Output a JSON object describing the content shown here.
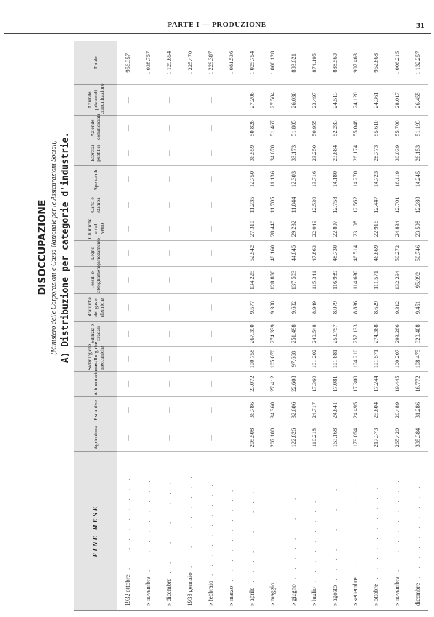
{
  "page_header": {
    "part": "PARTE I — PRODUZIONE",
    "page_number": "31"
  },
  "title": "DISOCCUPAZIONE",
  "subtitle": "(Ministero delle Corporazioni e Cassa Nazionale per le Assicurazioni Sociali)",
  "section": "A) Distribuzione per categorie d'industrie.",
  "table": {
    "month_header": "FINE MESE",
    "headers": [
      "Agricoltura",
      "Estrattive",
      "Alimentazione",
      "Siderurgiche metallurgiche meccaniche",
      "Edilizia e stradali",
      "Idrauliche del gas e elettriche",
      "Tessili e abbigliamento",
      "Legno (arredamento)",
      "Chimiche e del vetro",
      "Carta e stampa",
      "Spettacolo",
      "Esercizi pubblici",
      "Aziende commerciali",
      "Aziende private di comunicazione",
      "Totale"
    ],
    "rows": [
      {
        "month": "1932 ottobre",
        "values": [
          "—",
          "—",
          "—",
          "—",
          "—",
          "—",
          "—",
          "—",
          "—",
          "—",
          "—",
          "—",
          "—",
          "—",
          "956.357"
        ]
      },
      {
        "month": "» novembre",
        "values": [
          "—",
          "—",
          "—",
          "—",
          "—",
          "—",
          "—",
          "—",
          "—",
          "—",
          "—",
          "—",
          "—",
          "—",
          "1.038.757"
        ]
      },
      {
        "month": "» dicembre",
        "values": [
          "—",
          "—",
          "—",
          "—",
          "—",
          "—",
          "—",
          "—",
          "—",
          "—",
          "—",
          "—",
          "—",
          "—",
          "1.129.654"
        ]
      },
      {
        "month": "1933 gennaio",
        "values": [
          "—",
          "—",
          "—",
          "—",
          "—",
          "—",
          "—",
          "—",
          "—",
          "—",
          "—",
          "—",
          "—",
          "—",
          "1.225.470"
        ]
      },
      {
        "month": "» febbraio",
        "values": [
          "—",
          "—",
          "—",
          "—",
          "—",
          "—",
          "—",
          "—",
          "—",
          "—",
          "—",
          "—",
          "—",
          "—",
          "1.229.387"
        ]
      },
      {
        "month": "» marzo",
        "values": [
          "—",
          "—",
          "—",
          "—",
          "—",
          "—",
          "—",
          "—",
          "—",
          "—",
          "—",
          "—",
          "—",
          "—",
          "1.081.536"
        ]
      },
      {
        "month": "» aprile",
        "values": [
          "205.508",
          "36.786",
          "23.072",
          "100.758",
          "267.390",
          "9.577",
          "134.225",
          "52.542",
          "27.310",
          "11.235",
          "12.750",
          "36.559",
          "50.826",
          "27.206",
          "1.025.754"
        ]
      },
      {
        "month": "» maggio",
        "values": [
          "207.100",
          "34.360",
          "27.412",
          "105.070",
          "274.339",
          "9.308",
          "128.880",
          "48.160",
          "28.440",
          "11.705",
          "11.136",
          "34.670",
          "51.467",
          "27.504",
          "1.000.128"
        ]
      },
      {
        "month": "» giugno",
        "values": [
          "122.826",
          "32.606",
          "22.608",
          "97.668",
          "251.498",
          "9.682",
          "137.503",
          "44.845",
          "29.232",
          "11.844",
          "12.303",
          "33.173",
          "51.805",
          "26.030",
          "883.621"
        ]
      },
      {
        "month": "» luglio",
        "values": [
          "110.218",
          "24.717",
          "17.360",
          "101.202",
          "240.548",
          "8.949",
          "115.341",
          "47.863",
          "22.049",
          "12.530",
          "13.716",
          "23.250",
          "50.955",
          "23.497",
          "874.195"
        ]
      },
      {
        "month": "» agosto",
        "values": [
          "163.168",
          "24.641",
          "17.081",
          "101.881",
          "253.757",
          "8.079",
          "116.989",
          "48.730",
          "22.897",
          "12.758",
          "14.180",
          "23.684",
          "52.283",
          "24.513",
          "888.560"
        ]
      },
      {
        "month": "» settembre",
        "values": [
          "179.054",
          "24.495",
          "17.300",
          "104.210",
          "257.133",
          "8.836",
          "114.630",
          "46.514",
          "23.108",
          "12.562",
          "14.270",
          "26.174",
          "55.048",
          "24.120",
          "907.463"
        ]
      },
      {
        "month": "» ottobre",
        "values": [
          "217.373",
          "25.604",
          "17.244",
          "101.571",
          "274.368",
          "8.629",
          "111.571",
          "46.669",
          "22.916",
          "12.447",
          "14.723",
          "28.773",
          "55.610",
          "24.361",
          "962.868"
        ]
      },
      {
        "month": "» novembre",
        "values": [
          "265.420",
          "20.489",
          "19.445",
          "100.207",
          "293.266",
          "9.312",
          "132.294",
          "50.272",
          "24.834",
          "12.701",
          "16.119",
          "30.039",
          "55.700",
          "28.017",
          "1.006.215"
        ]
      },
      {
        "month": "dicembre",
        "values": [
          "335.384",
          "31.286",
          "16.772",
          "108.475",
          "320.408",
          "9.451",
          "95.992",
          "50.746",
          "23.508",
          "12.280",
          "14.245",
          "26.153",
          "51.193",
          "26.455",
          "1.132.257"
        ]
      }
    ]
  }
}
